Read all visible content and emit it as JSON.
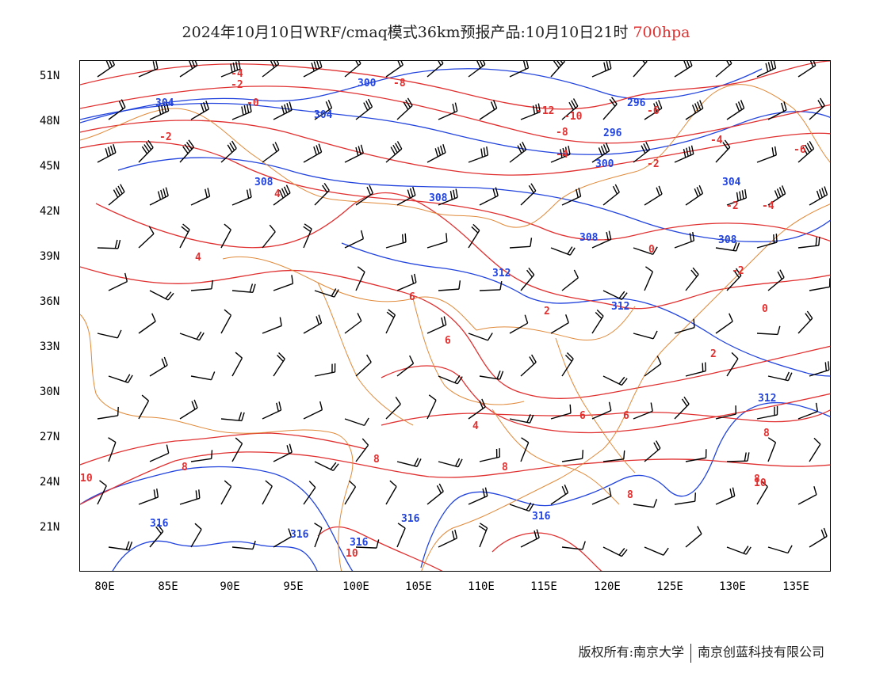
{
  "title": {
    "main": "2024年10月10日WRF/cmaq模式36km预报产品:10月10日21时",
    "level": "700hpa"
  },
  "colors": {
    "isotherm": "#e03030",
    "geopotential": "#2244dd",
    "border": "#e08a3a",
    "barb": "#000000"
  },
  "axes": {
    "lat_ticks": [
      "51N",
      "48N",
      "45N",
      "42N",
      "39N",
      "36N",
      "33N",
      "30N",
      "27N",
      "24N",
      "21N"
    ],
    "lon_ticks": [
      "80E",
      "85E",
      "90E",
      "95E",
      "100E",
      "105E",
      "110E",
      "115E",
      "120E",
      "125E",
      "130E",
      "135E"
    ]
  },
  "contour_labels": {
    "temperature": [
      "-4",
      "-2",
      "-0",
      "-2",
      "-8",
      "-4",
      "-12",
      "-10",
      "-8",
      "-6",
      "-4",
      "-2",
      "-4",
      "-6",
      "-2",
      "0",
      "-2",
      "0",
      "2",
      "2",
      "4",
      "4",
      "6",
      "6",
      "4",
      "6",
      "6",
      "8",
      "8",
      "8",
      "8",
      "8",
      "10",
      "10",
      "10",
      "8"
    ],
    "geopotential": [
      "304",
      "304",
      "300",
      "296",
      "296",
      "300",
      "304",
      "308",
      "308",
      "308",
      "308",
      "312",
      "312",
      "312",
      "316",
      "316",
      "316",
      "316",
      "316"
    ]
  },
  "footer": {
    "left": "版权所有:南京大学",
    "right": "南京创蓝科技有限公司"
  }
}
